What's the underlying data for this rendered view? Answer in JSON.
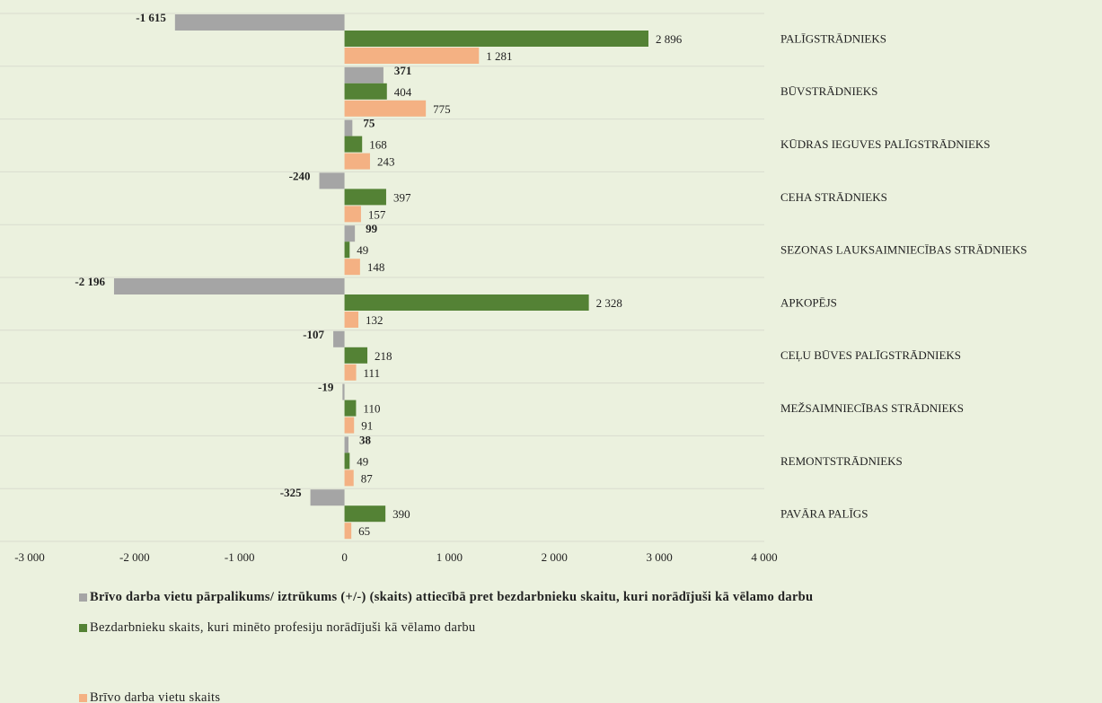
{
  "chart_data": {
    "type": "hbar",
    "categories": [
      "PALĪGSTRĀDNIEKS",
      "BŪVSTRĀDNIEKS",
      "KŪDRAS IEGUVES PALĪGSTRĀDNIEKS",
      "CEHA STRĀDNIEKS",
      "SEZONAS LAUKSAIMNIECĪBAS STRĀDNIEKS",
      "APKOPĒJS",
      "CEĻU BŪVES PALĪGSTRĀDNIEKS",
      "MEŽSAIMNIECĪBAS STRĀDNIEKS",
      "REMONTSTRĀDNIEKS",
      "PAVĀRA PALĪGS"
    ],
    "series": [
      {
        "name": "Brīvo darba vietu pārpalikums/ iztrūkums (+/-) (skaits) attiecībā pret bezdarbnieku skaitu, kuri norādījuši kā vēlamo darbu",
        "color": "#a5a5a5",
        "values": [
          -1615,
          371,
          75,
          -240,
          99,
          -2196,
          -107,
          -19,
          38,
          -325
        ],
        "value_labels": [
          "-1 615",
          "371",
          "75",
          "-240",
          "99",
          "-2 196",
          "-107",
          "-19",
          "38",
          "-325"
        ]
      },
      {
        "name": "Bezdarbnieku skaits, kuri minēto profesiju norādījuši kā vēlamo darbu",
        "color": "#548235",
        "values": [
          2896,
          404,
          168,
          397,
          49,
          2328,
          218,
          110,
          49,
          390
        ],
        "value_labels": [
          "2 896",
          "404",
          "168",
          "397",
          "49",
          "2 328",
          "218",
          "110",
          "49",
          "390"
        ]
      },
      {
        "name": "Brīvo darba vietu skaits",
        "color": "#f4b183",
        "values": [
          1281,
          775,
          243,
          157,
          148,
          132,
          111,
          91,
          87,
          65
        ],
        "value_labels": [
          "1 281",
          "775",
          "243",
          "157",
          "148",
          "132",
          "111",
          "91",
          "87",
          "65"
        ]
      }
    ],
    "xlim": [
      -3000,
      4000
    ],
    "xticks": [
      {
        "value": -3000,
        "label": "-3 000"
      },
      {
        "value": -2000,
        "label": "-2 000"
      },
      {
        "value": -1000,
        "label": "-1 000"
      },
      0,
      {
        "value": 1000,
        "label": "1 000"
      },
      {
        "value": 2000,
        "label": "2 000"
      },
      {
        "value": 3000,
        "label": "3 000"
      },
      {
        "value": 4000,
        "label": "4 000"
      }
    ],
    "legend": "bottom"
  }
}
